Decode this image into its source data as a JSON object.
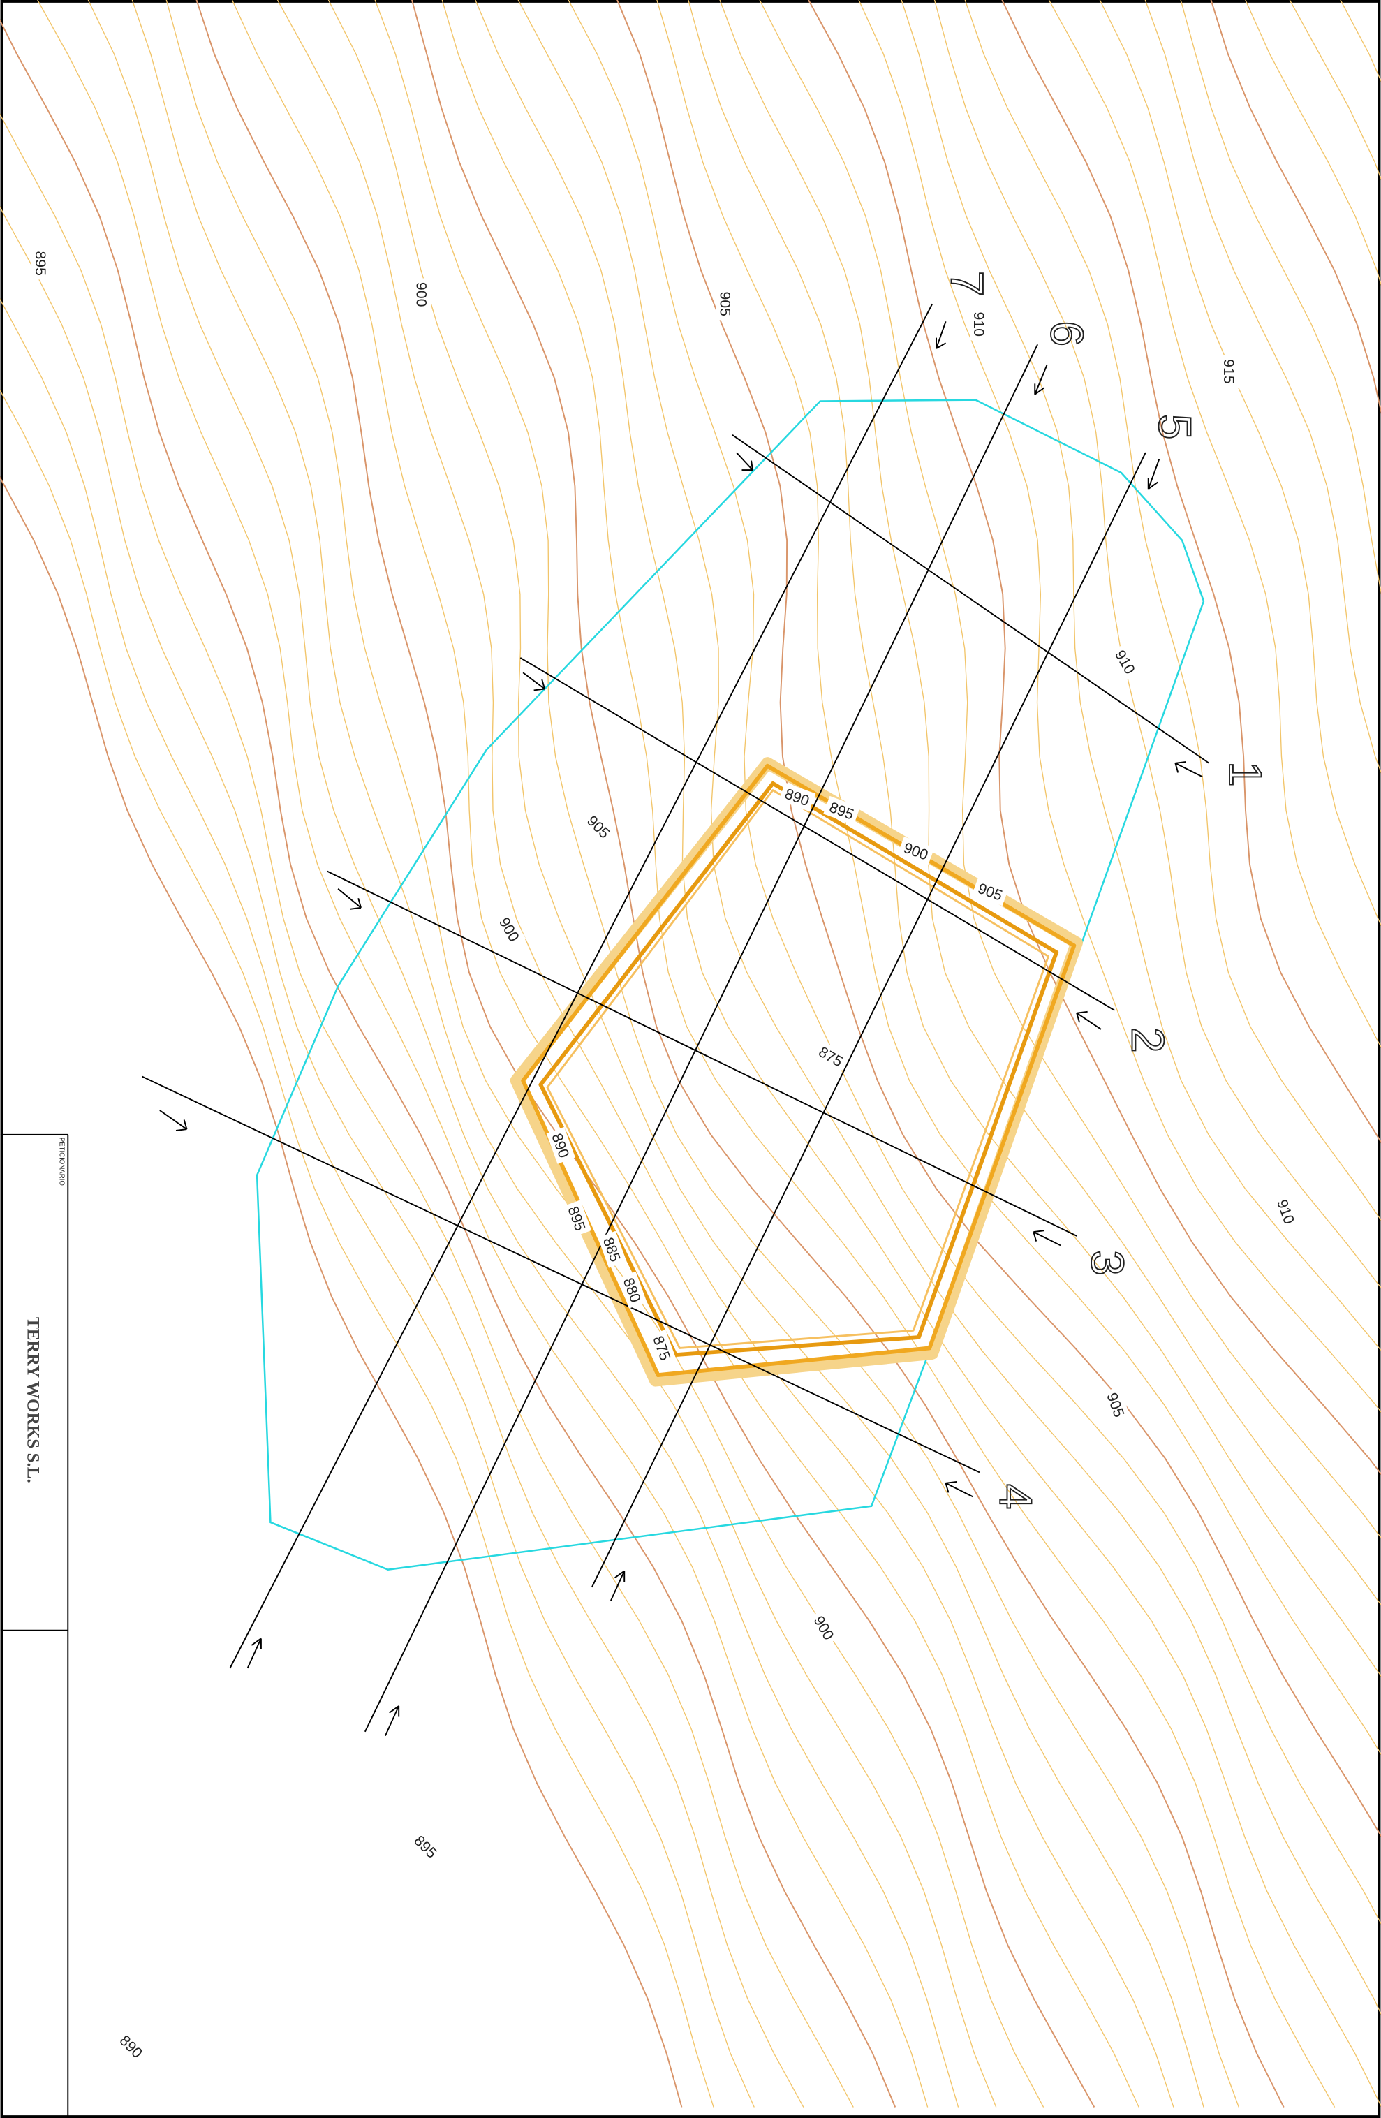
{
  "contour_labels": [
    "895",
    "900",
    "905",
    "910",
    "915",
    "910",
    "905",
    "900",
    "890",
    "895",
    "900",
    "905",
    "875",
    "910",
    "890",
    "895",
    "885",
    "880",
    "875",
    "905",
    "900",
    "895",
    "890"
  ],
  "sections": [
    "1",
    "2",
    "3",
    "4",
    "5",
    "6",
    "7"
  ],
  "title_block": {
    "label": "PETICIONARIO",
    "company": "TERRY WORKS S.L."
  }
}
